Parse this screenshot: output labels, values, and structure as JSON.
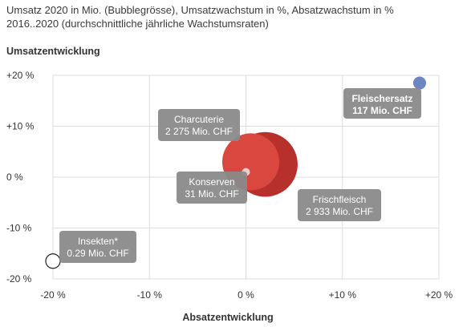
{
  "chart_data": {
    "type": "scatter",
    "title_lines": [
      "Umsatz 2020 in Mio. (Bubblegrösse), Umsatzwachstum in %, Absatzwachstum in %",
      "2016..2020 (durchschnittliche jährliche Wachstumsraten)"
    ],
    "xlabel": "Absatzentwicklung",
    "ylabel": "Umsatzentwicklung",
    "xlim": [
      -20,
      20
    ],
    "ylim": [
      -20,
      20
    ],
    "x_ticks": [
      -20,
      -10,
      0,
      10,
      20
    ],
    "x_tick_labels": [
      "-20 %",
      "-10 %",
      "0 %",
      "+10 %",
      "+20 %"
    ],
    "y_ticks": [
      20,
      10,
      0,
      -10,
      -20
    ],
    "y_tick_labels": [
      "+20 %",
      "+10 %",
      "0 %",
      "-10 %",
      "-20 %"
    ],
    "grid": true,
    "points": [
      {
        "id": "fleischersatz",
        "name": "Fleischersatz",
        "value_label": "117 Mio. CHF",
        "x": 18,
        "y": 18.5,
        "size": 117,
        "color": "#6d86c2",
        "bold": true
      },
      {
        "id": "frischfleisch",
        "name": "Frischfleisch",
        "value_label": "2 933 Mio. CHF",
        "x": 2,
        "y": 2.5,
        "size": 2933,
        "color": "#b8302b",
        "bold": false
      },
      {
        "id": "charcuterie",
        "name": "Charcuterie",
        "value_label": "2 275 Mio. CHF",
        "x": 0.5,
        "y": 3,
        "size": 2275,
        "color": "#d9473f",
        "bold": false
      },
      {
        "id": "konserven",
        "name": "Konserven",
        "value_label": "31 Mio. CHF",
        "x": 0,
        "y": 1,
        "size": 31,
        "color": "#f3c9c9",
        "bold": false
      },
      {
        "id": "insekten",
        "name": "Insekten*",
        "value_label": "0.29 Mio. CHF",
        "x": -20,
        "y": -16.5,
        "size": 0.29,
        "color": "#ffffff",
        "bold": false
      }
    ]
  }
}
